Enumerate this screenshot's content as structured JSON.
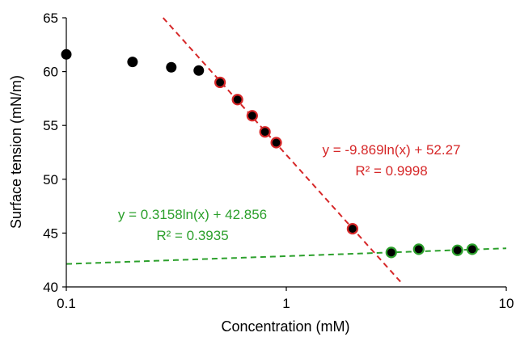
{
  "chart_data": {
    "type": "scatter",
    "title": "",
    "xlabel": "Concentration (mM)",
    "ylabel": "Surface tension (mN/m)",
    "x_scale": "log",
    "xlim": [
      0.1,
      10
    ],
    "ylim": [
      40,
      65
    ],
    "x_ticks": [
      0.1,
      1,
      10
    ],
    "x_tick_labels": [
      "0.1",
      "1",
      "10"
    ],
    "y_ticks": [
      40,
      45,
      50,
      55,
      60,
      65
    ],
    "y_tick_labels": [
      "40",
      "45",
      "50",
      "55",
      "60",
      "65"
    ],
    "grid": false,
    "legend": "none",
    "series": [
      {
        "x": [
          0.1,
          0.2,
          0.3,
          0.4
        ],
        "y": [
          61.6,
          60.9,
          60.4,
          60.1
        ],
        "marker_fill": "#000000",
        "marker_edge": "#000000"
      },
      {
        "x": [
          0.5,
          0.6,
          0.7,
          0.8,
          0.9,
          2.0
        ],
        "y": [
          59.0,
          57.4,
          55.9,
          54.4,
          53.4,
          45.4
        ],
        "marker_fill": "#000000",
        "marker_edge": "#d62728"
      },
      {
        "x": [
          3.0,
          4.0,
          6.0,
          7.0
        ],
        "y": [
          43.2,
          43.5,
          43.4,
          43.5
        ],
        "marker_fill": "#000000",
        "marker_edge": "#2ca02c"
      }
    ],
    "trendlines": [
      {
        "type": "log",
        "slope": -9.869,
        "intercept": 52.27,
        "color": "#d62728",
        "style": "dashed",
        "equation": "y = -9.869ln(x) + 52.27",
        "r2": "R² = 0.9998"
      },
      {
        "type": "log",
        "slope": 0.3158,
        "intercept": 42.856,
        "color": "#2ca02c",
        "style": "dashed",
        "equation": "y = 0.3158ln(x) + 42.856",
        "r2": "R² = 0.3935"
      }
    ]
  }
}
